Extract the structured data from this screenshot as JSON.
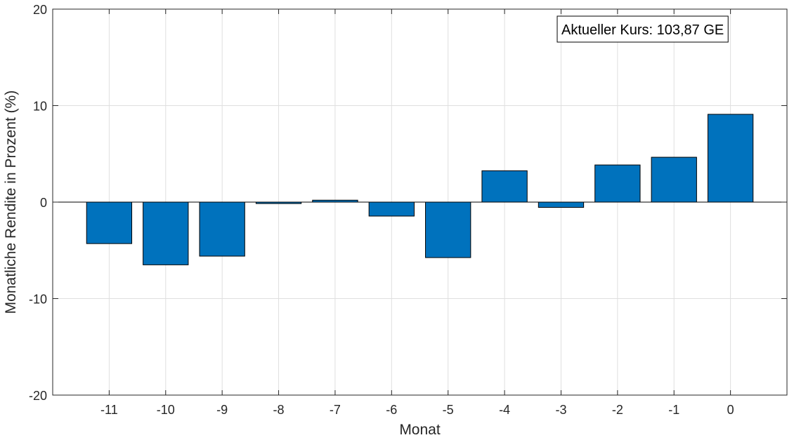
{
  "chart_data": {
    "type": "bar",
    "categories": [
      "-11",
      "-10",
      "-9",
      "-8",
      "-7",
      "-6",
      "-5",
      "-4",
      "-3",
      "-2",
      "-1",
      "0"
    ],
    "x": [
      -11,
      -10,
      -9,
      -8,
      -7,
      -6,
      -5,
      -4,
      -3,
      -2,
      -1,
      0
    ],
    "values": [
      -4.3,
      -6.5,
      -5.6,
      -0.15,
      0.2,
      -1.45,
      -5.75,
      3.25,
      -0.55,
      3.85,
      4.65,
      9.1
    ],
    "title": "",
    "xlabel": "Monat",
    "ylabel": "Monatliche Rendite in Prozent (%)",
    "ylim": [
      -20,
      20
    ],
    "xlim": [
      -12,
      1
    ],
    "yticks": [
      -20,
      -10,
      0,
      10,
      20
    ],
    "grid": true,
    "bar_color": "#0072BD",
    "annotation": "Aktueller Kurs: 103,87 GE",
    "annotation_placement": "top-right"
  }
}
